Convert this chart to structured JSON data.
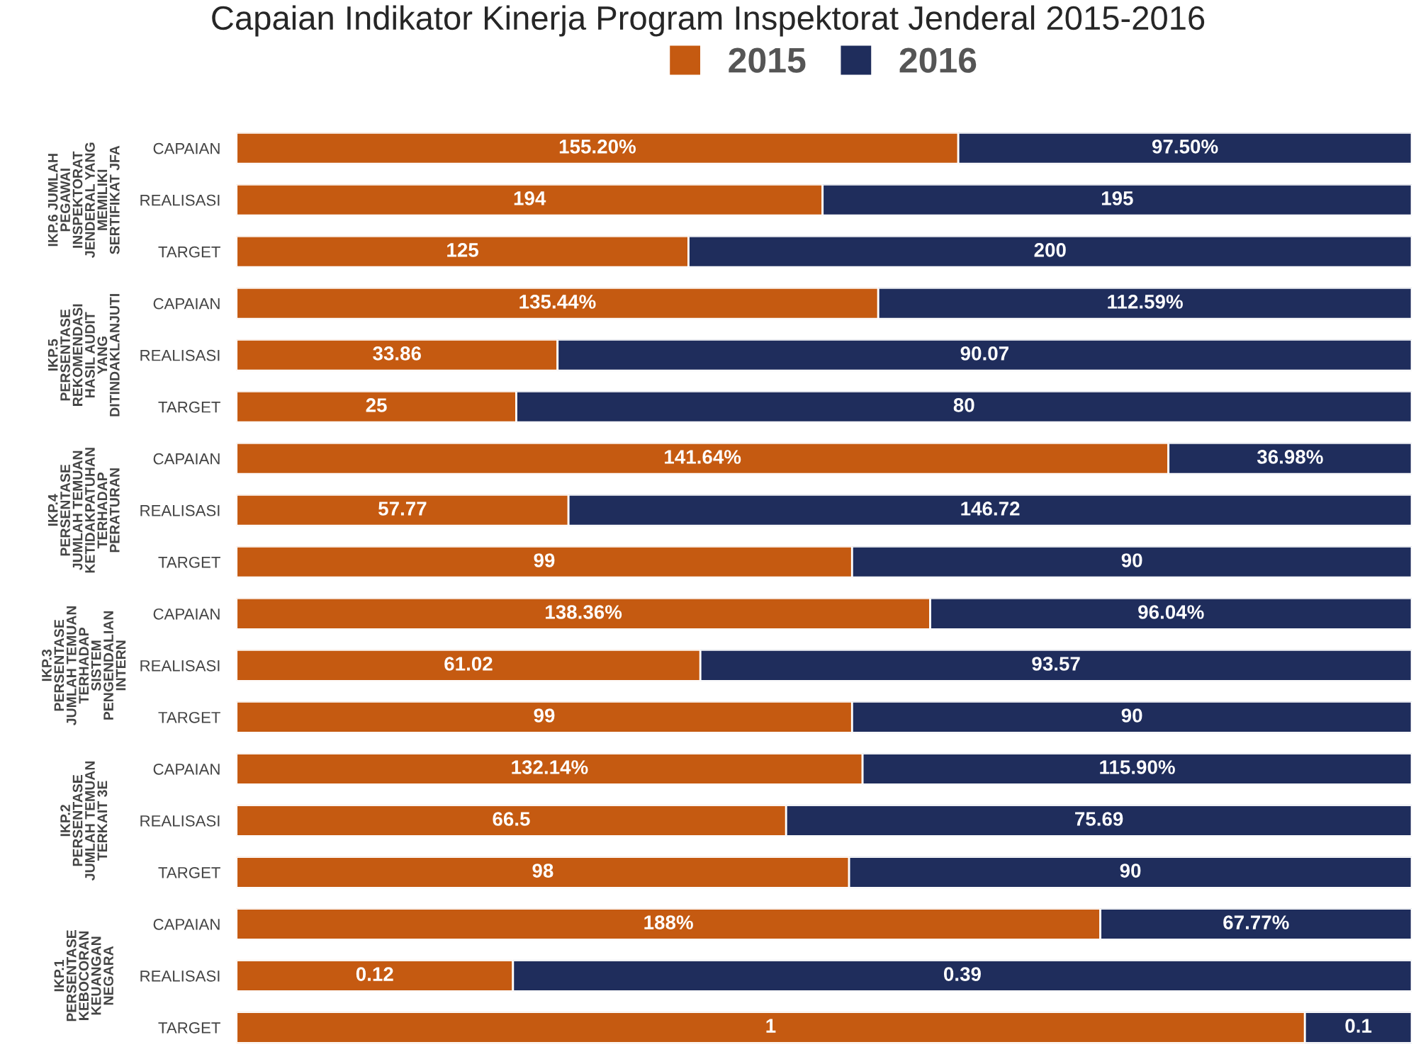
{
  "chart_data": [
    {
      "type": "bar",
      "orientation": "horizontal",
      "stacked": true,
      "title": "Capaian Indikator Kinerja Program Inspektorat Jenderal 2015-2016",
      "legend": "top",
      "annotations": [
        "IKP.6 JUMLAH\nPEGAWAI\nINSPEKTORAT\nJENDERAL YANG\nMEMILIKI\nSERTIFIKAT JFA"
      ],
      "categories": [
        "CAPAIAN"
      ],
      "series": [
        {
          "name": "2015",
          "color": "#c55a11",
          "values": [
            155.2
          ],
          "value_labels": [
            "155.20%"
          ]
        },
        {
          "name": "2016",
          "color": "#1f2d5c",
          "values": [
            97.5
          ],
          "value_labels": [
            "97.50%"
          ]
        }
      ]
    },
    {
      "type": "bar",
      "orientation": "horizontal",
      "stacked": true,
      "categories": [
        "REALISASI"
      ],
      "series": [
        {
          "color": "#c55a11",
          "values": [
            194
          ]
        },
        {
          "color": "#1f2d5c",
          "values": [
            195
          ]
        }
      ],
      "data_labels": true
    },
    {
      "type": "bar",
      "orientation": "horizontal",
      "stacked": true,
      "categories": [
        "TARGET"
      ],
      "series": [
        {
          "color": "#c55a11",
          "values": [
            125
          ]
        },
        {
          "color": "#1f2d5c",
          "values": [
            200
          ]
        }
      ],
      "data_labels": true
    },
    {
      "type": "bar",
      "orientation": "horizontal",
      "stacked": true,
      "annotations": [
        "IKP.5\nPERSENTASE\nREKOMENDASI\nHASIL AUDIT\nYANG\nDITINDAKLANJUTI"
      ],
      "categories": [
        "CAPAIAN"
      ],
      "series": [
        {
          "color": "#c55a11",
          "values": [
            135.44
          ],
          "value_labels": [
            "135.44%"
          ]
        },
        {
          "color": "#1f2d5c",
          "values": [
            112.59
          ],
          "value_labels": [
            "112.59%"
          ]
        }
      ]
    },
    {
      "type": "bar",
      "orientation": "horizontal",
      "stacked": true,
      "categories": [
        "REALISASI"
      ],
      "series": [
        {
          "color": "#c55a11",
          "values": [
            33.86
          ]
        },
        {
          "color": "#1f2d5c",
          "values": [
            90.07
          ]
        }
      ],
      "data_labels": true
    },
    {
      "type": "bar",
      "orientation": "horizontal",
      "stacked": true,
      "categories": [
        "TARGET"
      ],
      "series": [
        {
          "color": "#c55a11",
          "values": [
            25
          ]
        },
        {
          "color": "#1f2d5c",
          "values": [
            80
          ]
        }
      ],
      "data_labels": true
    },
    {
      "type": "bar",
      "orientation": "horizontal",
      "stacked": true,
      "annotations": [
        "IKP.4\nPERSENTASE\nJUMLAH TEMUAN\nKETIDAKPATUHAN\nTERHADAP\nPERATURAN"
      ],
      "categories": [
        "CAPAIAN"
      ],
      "series": [
        {
          "color": "#c55a11",
          "values": [
            141.64
          ],
          "value_labels": [
            "141.64%"
          ]
        },
        {
          "color": "#1f2d5c",
          "values": [
            36.98
          ],
          "value_labels": [
            "36.98%"
          ]
        }
      ]
    },
    {
      "type": "bar",
      "orientation": "horizontal",
      "stacked": true,
      "categories": [
        "REALISASI"
      ],
      "series": [
        {
          "color": "#c55a11",
          "values": [
            57.77
          ]
        },
        {
          "color": "#1f2d5c",
          "values": [
            146.72
          ]
        }
      ],
      "data_labels": true
    },
    {
      "type": "bar",
      "orientation": "horizontal",
      "stacked": true,
      "categories": [
        "TARGET"
      ],
      "series": [
        {
          "color": "#c55a11",
          "values": [
            99
          ]
        },
        {
          "color": "#1f2d5c",
          "values": [
            90
          ]
        }
      ],
      "data_labels": true
    },
    {
      "type": "bar",
      "orientation": "horizontal",
      "stacked": true,
      "annotations": [
        "IKP.3\nPERSENTASE\nJUMLAH TEMUAN\nTERHADAP\nSISTEM\nPENGENDALIAN\nINTERN"
      ],
      "categories": [
        "CAPAIAN"
      ],
      "series": [
        {
          "color": "#c55a11",
          "values": [
            138.36
          ],
          "value_labels": [
            "138.36%"
          ]
        },
        {
          "color": "#1f2d5c",
          "values": [
            96.04
          ],
          "value_labels": [
            "96.04%"
          ]
        }
      ]
    },
    {
      "type": "bar",
      "orientation": "horizontal",
      "stacked": true,
      "categories": [
        "REALISASI"
      ],
      "series": [
        {
          "color": "#c55a11",
          "values": [
            61.02
          ]
        },
        {
          "color": "#1f2d5c",
          "values": [
            93.57
          ]
        }
      ],
      "data_labels": true
    },
    {
      "type": "bar",
      "orientation": "horizontal",
      "stacked": true,
      "categories": [
        "TARGET"
      ],
      "series": [
        {
          "color": "#c55a11",
          "values": [
            99
          ]
        },
        {
          "color": "#1f2d5c",
          "values": [
            90
          ]
        }
      ],
      "data_labels": true
    },
    {
      "type": "bar",
      "orientation": "horizontal",
      "stacked": true,
      "annotations": [
        "IKP.2\nPERSENTASE\nJUMLAH TEMUAN\nTERKAIT 3E"
      ],
      "categories": [
        "CAPAIAN"
      ],
      "series": [
        {
          "color": "#c55a11",
          "values": [
            132.14
          ],
          "value_labels": [
            "132.14%"
          ]
        },
        {
          "color": "#1f2d5c",
          "values": [
            115.9
          ],
          "value_labels": [
            "115.90%"
          ]
        }
      ]
    },
    {
      "type": "bar",
      "orientation": "horizontal",
      "stacked": true,
      "categories": [
        "REALISASI"
      ],
      "series": [
        {
          "color": "#c55a11",
          "values": [
            66.5
          ]
        },
        {
          "color": "#1f2d5c",
          "values": [
            75.69
          ]
        }
      ],
      "data_labels": true
    },
    {
      "type": "bar",
      "orientation": "horizontal",
      "stacked": true,
      "categories": [
        "TARGET"
      ],
      "series": [
        {
          "color": "#c55a11",
          "values": [
            98
          ]
        },
        {
          "color": "#1f2d5c",
          "values": [
            90
          ]
        }
      ],
      "data_labels": true
    },
    {
      "type": "bar",
      "orientation": "horizontal",
      "stacked": true,
      "annotations": [
        "IKP.1\nPERSENTASE\nKEBOCORAN\nKEUANGAN\nNEGARA"
      ],
      "categories": [
        "CAPAIAN"
      ],
      "series": [
        {
          "color": "#c55a11",
          "values": [
            188
          ],
          "value_labels": [
            "188%"
          ]
        },
        {
          "color": "#1f2d5c",
          "values": [
            67.77
          ],
          "value_labels": [
            "67.77%"
          ]
        }
      ]
    },
    {
      "type": "bar",
      "orientation": "horizontal",
      "stacked": true,
      "categories": [
        "REALISASI"
      ],
      "series": [
        {
          "color": "#c55a11",
          "values": [
            0.12
          ]
        },
        {
          "color": "#1f2d5c",
          "values": [
            0.39
          ]
        }
      ],
      "data_labels": true
    },
    {
      "type": "bar",
      "orientation": "horizontal",
      "stacked": true,
      "categories": [
        "TARGET"
      ],
      "series": [
        {
          "color": "#c55a11",
          "values": [
            1
          ]
        },
        {
          "color": "#1f2d5c",
          "values": [
            0.1
          ]
        }
      ],
      "data_labels": true
    }
  ]
}
